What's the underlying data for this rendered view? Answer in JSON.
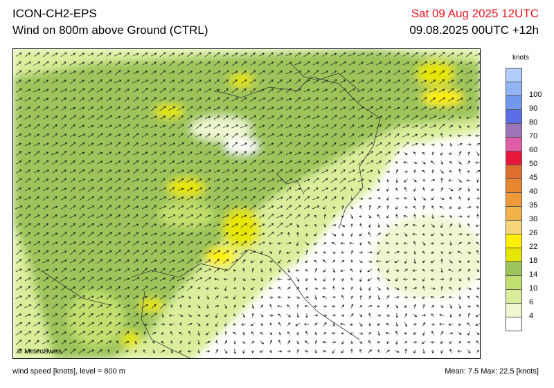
{
  "header": {
    "model": "ICON-CH2-EPS",
    "product": "Wind on 800m above Ground (CTRL)",
    "valid_time": "Sat 09 Aug 2025 12UTC",
    "run_info": "09.08.2025 00UTC +12h"
  },
  "map": {
    "credit": "© MeteoSwiss"
  },
  "legend": {
    "unit": "knots",
    "levels": [
      {
        "label": "",
        "color": "#ffffff"
      },
      {
        "label": "4",
        "color": "#eef7cf"
      },
      {
        "label": "6",
        "color": "#d9ee9a"
      },
      {
        "label": "10",
        "color": "#c2e06e"
      },
      {
        "label": "14",
        "color": "#9cc45a"
      },
      {
        "label": "18",
        "color": "#e6e600"
      },
      {
        "label": "22",
        "color": "#fff000"
      },
      {
        "label": "26",
        "color": "#f7d67a"
      },
      {
        "label": "30",
        "color": "#f2b24a"
      },
      {
        "label": "35",
        "color": "#ee9a3a"
      },
      {
        "label": "40",
        "color": "#e8862f"
      },
      {
        "label": "45",
        "color": "#df6d2e"
      },
      {
        "label": "50",
        "color": "#e8183c"
      },
      {
        "label": "60",
        "color": "#e25da8"
      },
      {
        "label": "70",
        "color": "#9d74b8"
      },
      {
        "label": "80",
        "color": "#5b6ee8"
      },
      {
        "label": "90",
        "color": "#7297ee"
      },
      {
        "label": "100",
        "color": "#91b5f4"
      },
      {
        "label": "",
        "color": "#b3cef8"
      }
    ]
  },
  "footer": {
    "variable": "wind speed [knots], level = 800 m",
    "stats": "Mean:   7.5 Max:  22.5 [knots]"
  }
}
